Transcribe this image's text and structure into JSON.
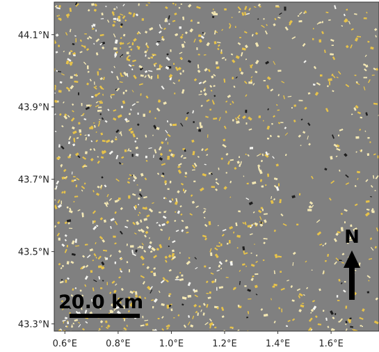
{
  "map": {
    "lon_range": [
      0.56,
      1.78
    ],
    "lat_range": [
      43.28,
      44.19
    ],
    "x_ticks": [
      {
        "value": 0.6,
        "label": "0.6°E"
      },
      {
        "value": 0.8,
        "label": "0.8°E"
      },
      {
        "value": 1.0,
        "label": "1.0°E"
      },
      {
        "value": 1.2,
        "label": "1.2°E"
      },
      {
        "value": 1.4,
        "label": "1.4°E"
      },
      {
        "value": 1.6,
        "label": "1.6°E"
      }
    ],
    "y_ticks": [
      {
        "value": 44.1,
        "label": "44.1°N"
      },
      {
        "value": 43.9,
        "label": "43.9°N"
      },
      {
        "value": 43.7,
        "label": "43.7°N"
      },
      {
        "value": 43.5,
        "label": "43.5°N"
      },
      {
        "value": 43.3,
        "label": "43.3°N"
      }
    ],
    "scale_bar": {
      "label": "20.0 km",
      "distance_km": 20.0
    },
    "north_arrow": {
      "label": "N"
    },
    "colors": {
      "background": "#808080",
      "patch_yellow": "#e6c24a",
      "patch_light": "#f3e7b3",
      "patch_white": "#f5f5f0",
      "patch_dark": "#1e1e1e",
      "frame": "#333333"
    }
  }
}
